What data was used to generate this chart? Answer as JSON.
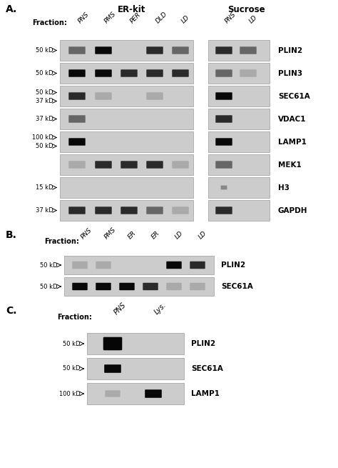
{
  "fig_width": 4.74,
  "fig_height": 6.55,
  "bg_color": "#ffffff",
  "A_label": "A.",
  "B_label": "B.",
  "C_label": "C.",
  "A_erkit_label": "ER-kit",
  "A_sucrose_label": "Sucrose",
  "A_fraction_label": "Fraction:",
  "A_erkit_cols": [
    "PNS",
    "PMS",
    "PER",
    "DLD",
    "LD"
  ],
  "A_sucrose_cols": [
    "PNS",
    "LD"
  ],
  "A_rows": [
    "PLIN2",
    "PLIN3",
    "SEC61A",
    "VDAC1",
    "LAMP1",
    "MEK1",
    "H3",
    "GAPDH"
  ],
  "B_fraction_label": "Fraction:",
  "B_cols": [
    "PNS",
    "PMS",
    "ER",
    "ER",
    "LD",
    "LD"
  ],
  "B_rows": [
    "PLIN2",
    "SEC61A"
  ],
  "B_kd_labels": [
    "50 kD",
    "50 kD"
  ],
  "C_fraction_label": "Fraction:",
  "C_cols": [
    "PNS",
    "Lys."
  ],
  "C_rows": [
    "PLIN2",
    "SEC61A",
    "LAMP1"
  ],
  "C_kd_labels": [
    "50 kD",
    "50 kD",
    "100 kD"
  ]
}
